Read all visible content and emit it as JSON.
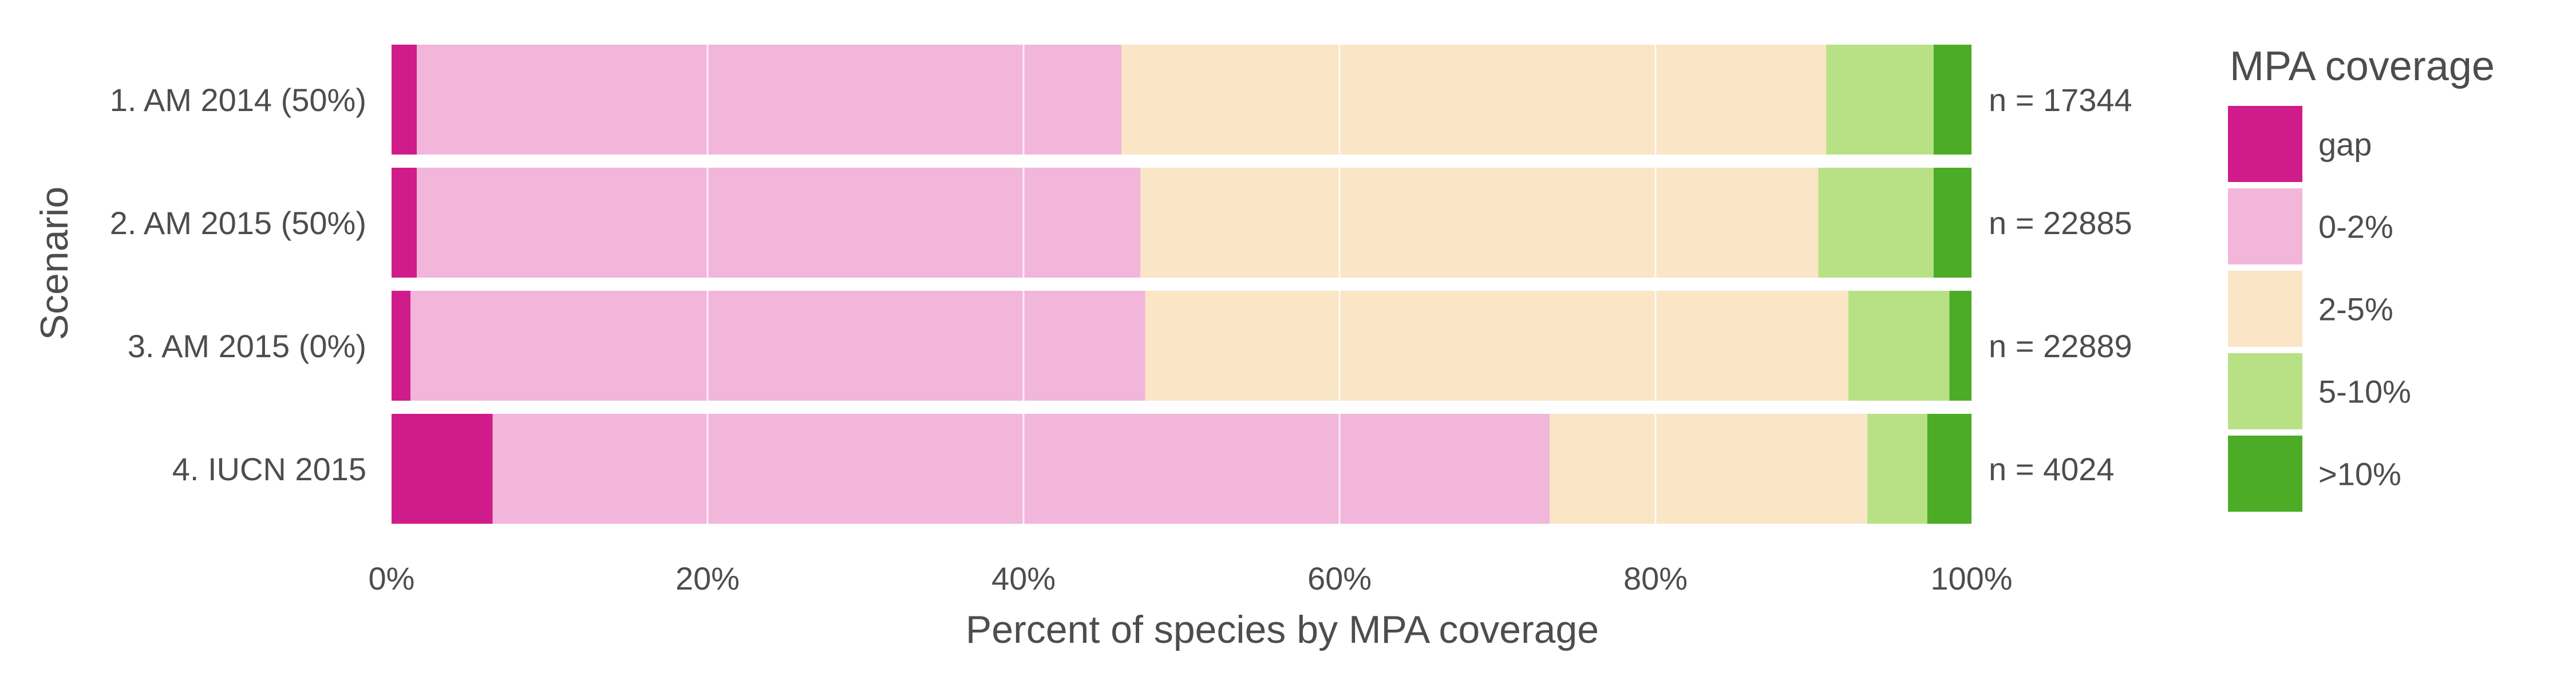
{
  "chart_data": {
    "type": "bar",
    "orientation": "horizontal",
    "stacked": true,
    "normalized": true,
    "xlabel": "Percent of species by MPA coverage",
    "ylabel": "Scenario",
    "xlim": [
      0,
      100
    ],
    "x_ticks": [
      "0%",
      "20%",
      "40%",
      "60%",
      "80%",
      "100%"
    ],
    "categories": [
      "1. AM 2014 (50%)",
      "2. AM 2015 (50%)",
      "3. AM 2015 (0%)",
      "4. IUCN 2015"
    ],
    "annotations": [
      "n = 17344",
      "n = 22885",
      "n = 22889",
      "n = 4024"
    ],
    "legend": {
      "title": "MPA coverage",
      "placement": "right"
    },
    "grid": true,
    "series": [
      {
        "name": "gap",
        "color": "#d01c8b",
        "values": [
          1.6,
          1.6,
          1.2,
          6.4
        ]
      },
      {
        "name": "0-2%",
        "color": "#f1b6da",
        "values": [
          44.6,
          45.8,
          46.5,
          66.9
        ]
      },
      {
        "name": "2-5%",
        "color": "#fbe5c7",
        "values": [
          44.6,
          42.9,
          44.5,
          20.1
        ]
      },
      {
        "name": "5-10%",
        "color": "#b8e186",
        "values": [
          6.8,
          7.3,
          6.4,
          3.8
        ]
      },
      {
        "name": ">10%",
        "color": "#4dac26",
        "values": [
          2.4,
          2.4,
          1.4,
          2.8
        ]
      }
    ]
  }
}
